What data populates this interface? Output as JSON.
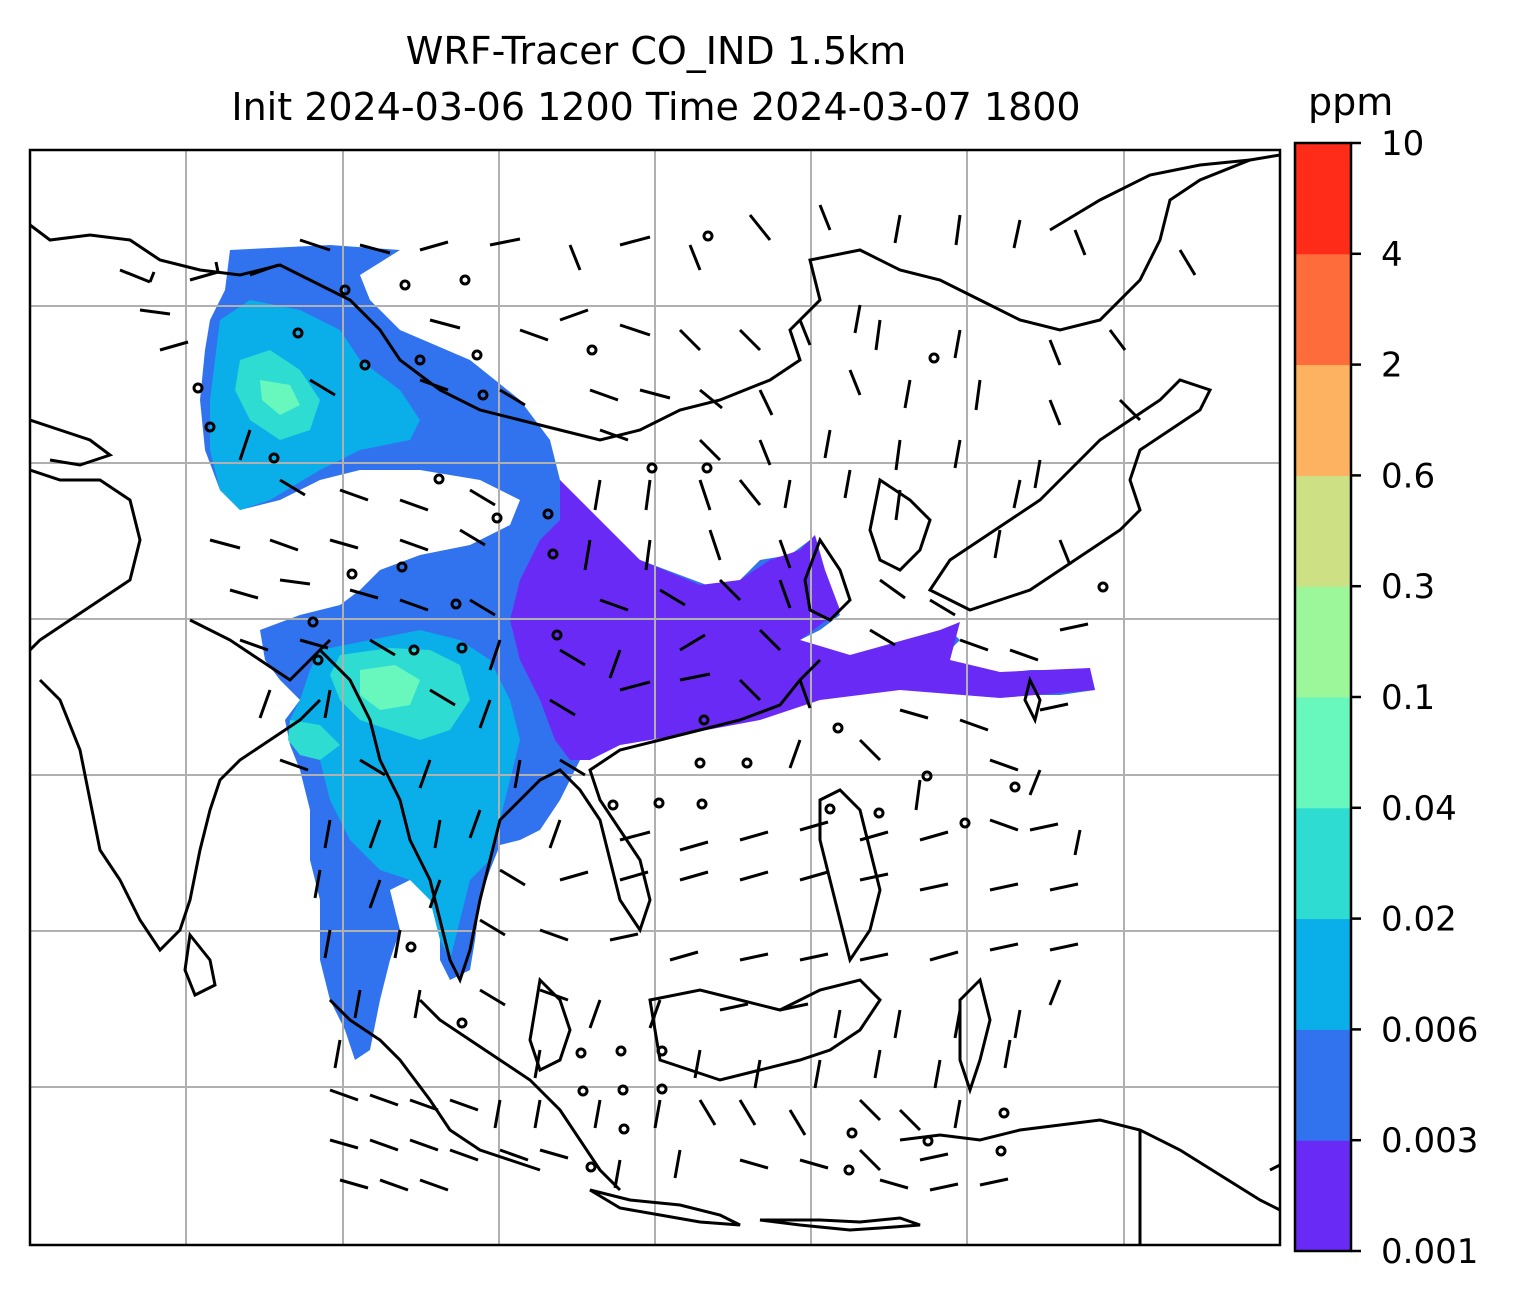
{
  "title": {
    "line1": "WRF-Tracer CO_IND 1.5km",
    "line2": "Init 2024-03-06 1200 Time 2024-03-07 1800"
  },
  "colorbar": {
    "unit": "ppm",
    "levels": [
      "0.001",
      "0.003",
      "0.006",
      "0.02",
      "0.04",
      "0.1",
      "0.3",
      "0.6",
      "2",
      "4",
      "10"
    ],
    "colors": [
      "#6a2af5",
      "#3173ee",
      "#0aaee8",
      "#2fdcd1",
      "#68f8bd",
      "#9cf69a",
      "#cde083",
      "#fcb261",
      "#fd6c3a",
      "#fe2c18"
    ]
  },
  "map": {
    "gridlines": true,
    "field": "CO_IND tracer concentration",
    "wind_barbs": true,
    "coastlines": true
  }
}
